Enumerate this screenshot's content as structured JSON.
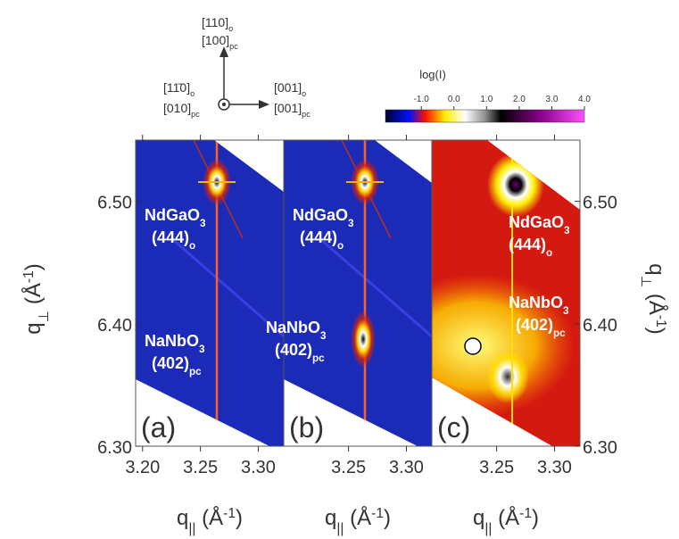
{
  "orientation": {
    "up": [
      [
        {
          "text": "[110]"
        },
        {
          "text": "o",
          "shift": "sub"
        }
      ],
      [
        {
          "text": "[100]"
        },
        {
          "text": "pc",
          "shift": "sub"
        }
      ]
    ],
    "out": [
      [
        {
          "text": "[11̄0]"
        },
        {
          "text": "o",
          "shift": "sub"
        }
      ],
      [
        {
          "text": "[010]"
        },
        {
          "text": "pc",
          "shift": "sub"
        }
      ]
    ],
    "right": [
      [
        {
          "text": "[001]"
        },
        {
          "text": "o",
          "shift": "sub"
        }
      ],
      [
        {
          "text": "[001]"
        },
        {
          "text": "pc",
          "shift": "sub"
        }
      ]
    ]
  },
  "colorbar": {
    "title": "log(I)",
    "lim": [
      -2.1,
      4.0
    ],
    "ticks": [
      {
        "value": -1,
        "label": "-1.0"
      },
      {
        "value": 0,
        "label": "0.0"
      },
      {
        "value": 1,
        "label": "1.0"
      },
      {
        "value": 2,
        "label": "2.0"
      },
      {
        "value": 3,
        "label": "3.0"
      },
      {
        "value": 4,
        "label": "4.0"
      }
    ]
  },
  "chart_data": [
    {
      "type": "heatmap",
      "panel_label": "(a)",
      "xlim": [
        3.194,
        3.322
      ],
      "ylim": [
        6.3,
        6.55
      ],
      "xticks": [
        {
          "value": 3.2,
          "label": "3.20"
        },
        {
          "value": 3.25,
          "label": "3.25"
        },
        {
          "value": 3.3,
          "label": "3.30"
        }
      ],
      "yticks": [
        {
          "value": 6.3,
          "label": "6.30"
        },
        {
          "value": 6.4,
          "label": "6.40"
        },
        {
          "value": 6.5,
          "label": "6.50"
        }
      ],
      "yaxis_side": "left",
      "x_label": [
        {
          "text": "q"
        },
        {
          "text": "||",
          "shift": "sub"
        },
        {
          "text": " (Å"
        },
        {
          "text": "-1",
          "shift": "sup"
        },
        {
          "text": ")"
        }
      ],
      "y_label": [
        {
          "text": "q"
        },
        {
          "text": "⊥",
          "shift": "sub"
        },
        {
          "text": " (Å"
        },
        {
          "text": "-1",
          "shift": "sup"
        },
        {
          "text": ")"
        }
      ],
      "annotations": [
        [
          {
            "text": "NdGaO"
          },
          {
            "text": "3",
            "shift": "sub"
          }
        ],
        [
          {
            "text": "(444)"
          },
          {
            "text": "o",
            "shift": "sub"
          }
        ],
        [
          {
            "text": "NaNbO"
          },
          {
            "text": "3",
            "shift": "sub"
          }
        ],
        [
          {
            "text": "(402)"
          },
          {
            "text": "pc",
            "shift": "sub"
          }
        ]
      ]
    },
    {
      "type": "heatmap",
      "panel_label": "(b)",
      "xlim": [
        3.194,
        3.322
      ],
      "ylim": [
        6.3,
        6.55
      ],
      "xticks": [
        {
          "value": 3.25,
          "label": "3.25"
        },
        {
          "value": 3.3,
          "label": "3.30"
        }
      ],
      "x_label": [
        {
          "text": "q"
        },
        {
          "text": "||",
          "shift": "sub"
        },
        {
          "text": " (Å"
        },
        {
          "text": "-1",
          "shift": "sup"
        },
        {
          "text": ")"
        }
      ],
      "annotations": [
        [
          {
            "text": "NdGaO"
          },
          {
            "text": "3",
            "shift": "sub"
          }
        ],
        [
          {
            "text": "(444)"
          },
          {
            "text": "o",
            "shift": "sub"
          }
        ],
        [
          {
            "text": "NaNbO"
          },
          {
            "text": "3",
            "shift": "sub"
          }
        ],
        [
          {
            "text": "(402)"
          },
          {
            "text": "pc",
            "shift": "sub"
          }
        ]
      ]
    },
    {
      "type": "heatmap",
      "panel_label": "(c)",
      "xlim": [
        3.194,
        3.322
      ],
      "ylim": [
        6.3,
        6.55
      ],
      "xticks": [
        {
          "value": 3.25,
          "label": "3.25"
        },
        {
          "value": 3.3,
          "label": "3.30"
        }
      ],
      "yticks": [
        {
          "value": 6.3,
          "label": "6.30"
        },
        {
          "value": 6.4,
          "label": "6.40"
        },
        {
          "value": 6.5,
          "label": "6.50"
        }
      ],
      "yaxis_side": "right",
      "x_label": [
        {
          "text": "q"
        },
        {
          "text": "||",
          "shift": "sub"
        },
        {
          "text": " (Å"
        },
        {
          "text": "-1",
          "shift": "sup"
        },
        {
          "text": ")"
        }
      ],
      "y_label": [
        {
          "text": "q"
        },
        {
          "text": "⊥",
          "shift": "sub"
        },
        {
          "text": " (Å"
        },
        {
          "text": "-1",
          "shift": "sup"
        },
        {
          "text": ")"
        }
      ],
      "annotations": [
        [
          {
            "text": "NdGaO"
          },
          {
            "text": "3",
            "shift": "sub"
          }
        ],
        [
          {
            "text": "(444)"
          },
          {
            "text": "o",
            "shift": "sub"
          }
        ],
        [
          {
            "text": "NaNbO"
          },
          {
            "text": "3",
            "shift": "sub"
          }
        ],
        [
          {
            "text": "(402)"
          },
          {
            "text": "pc",
            "shift": "sub"
          }
        ]
      ]
    }
  ]
}
